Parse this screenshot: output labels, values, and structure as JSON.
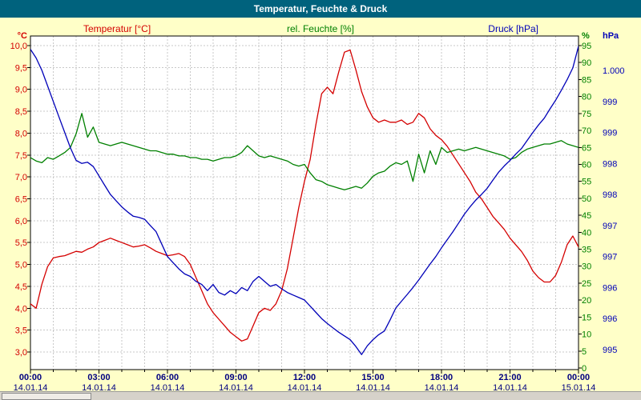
{
  "window": {
    "title": "Temperatur, Feuchte & Druck"
  },
  "colors": {
    "background": "#ffffc8",
    "plot_background": "#ffffff",
    "grid": "#c8c8c8",
    "plot_border": "#000000",
    "title_bar_bg": "#00627d",
    "title_bar_fg": "#ffffff",
    "time_label": "#000080",
    "temperature": "#d40000",
    "humidity": "#008000",
    "pressure": "#0000b8"
  },
  "chart_data": {
    "type": "line",
    "title": "Temperatur, Feuchte & Druck",
    "grid": {
      "style": "dashed",
      "vertical_every_hours": 1,
      "horizontal_every_deg_c": 0.5
    },
    "x_axis": {
      "unit": "time",
      "range": [
        0,
        24
      ],
      "step_hours": 0.25,
      "tick_hours": [
        0,
        3,
        6,
        9,
        12,
        15,
        18,
        21,
        24
      ],
      "tick_labels": [
        "00:00",
        "03:00",
        "06:00",
        "09:00",
        "12:00",
        "15:00",
        "18:00",
        "21:00",
        "00:00"
      ],
      "date_labels": [
        "14.01.14",
        "14.01.14",
        "14.01.14",
        "14.01.14",
        "14.01.14",
        "14.01.14",
        "14.01.14",
        "14.01.14",
        "15.01.14"
      ]
    },
    "y_axes": {
      "temperature": {
        "label": "Temperatur [°C]",
        "unit": "°C",
        "min": 3.0,
        "max": 10.0,
        "tick_step": 0.5,
        "color": "#d40000",
        "tick_labels": [
          "10,0",
          "9,5",
          "9,0",
          "8,5",
          "8,0",
          "7,5",
          "7,0",
          "6,5",
          "6,0",
          "5,5",
          "5,0",
          "4,5",
          "4,0",
          "3,5",
          "3,0"
        ]
      },
      "humidity": {
        "label": "rel. Feuchte [%]",
        "unit": "%",
        "min": 0,
        "max": 95,
        "tick_step": 5,
        "color": "#008000",
        "tick_labels": [
          "95",
          "90",
          "85",
          "80",
          "75",
          "70",
          "65",
          "60",
          "55",
          "50",
          "45",
          "40",
          "35",
          "30",
          "25",
          "20",
          "15",
          "10",
          "5",
          "0"
        ]
      },
      "pressure": {
        "label": "Druck [hPa]",
        "unit": "hPa",
        "color": "#0000b8",
        "tick_values": [
          1000.0,
          999.5,
          999.0,
          998.5,
          998.0,
          997.5,
          997.0,
          996.5,
          996.0,
          995.5
        ],
        "tick_labels": [
          "1.000",
          "999",
          "999",
          "998",
          "998",
          "997",
          "997",
          "996",
          "996",
          "995"
        ]
      }
    },
    "series": [
      {
        "name": "Temperatur [°C]",
        "axis": "temperature",
        "color": "#d40000",
        "values": [
          4.1,
          4.0,
          4.55,
          4.95,
          5.15,
          5.18,
          5.2,
          5.25,
          5.3,
          5.28,
          5.35,
          5.4,
          5.5,
          5.55,
          5.6,
          5.55,
          5.5,
          5.45,
          5.4,
          5.42,
          5.45,
          5.38,
          5.3,
          5.25,
          5.2,
          5.22,
          5.25,
          5.18,
          5.0,
          4.7,
          4.4,
          4.1,
          3.9,
          3.75,
          3.6,
          3.45,
          3.35,
          3.25,
          3.3,
          3.6,
          3.9,
          4.0,
          3.95,
          4.1,
          4.4,
          4.9,
          5.6,
          6.3,
          6.9,
          7.4,
          8.2,
          8.9,
          9.05,
          8.9,
          9.4,
          9.85,
          9.9,
          9.45,
          8.95,
          8.6,
          8.35,
          8.25,
          8.3,
          8.25,
          8.25,
          8.3,
          8.2,
          8.25,
          8.45,
          8.35,
          8.1,
          7.95,
          7.85,
          7.7,
          7.5,
          7.3,
          7.1,
          6.9,
          6.65,
          6.5,
          6.3,
          6.1,
          5.95,
          5.8,
          5.6,
          5.45,
          5.3,
          5.1,
          4.85,
          4.7,
          4.6,
          4.6,
          4.75,
          5.05,
          5.45,
          5.65,
          5.4
        ]
      },
      {
        "name": "rel. Feuchte [%]",
        "axis": "humidity",
        "color": "#008000",
        "values": [
          62,
          61,
          60.5,
          62,
          61.5,
          62.5,
          63.5,
          65,
          69,
          75,
          68,
          71,
          66.5,
          66,
          65.5,
          66,
          66.5,
          66,
          65.5,
          65,
          64.5,
          64,
          64,
          63.5,
          63,
          63,
          62.5,
          62.5,
          62,
          62,
          61.5,
          61.5,
          61,
          61.5,
          62,
          62,
          62.5,
          63.5,
          65.5,
          64,
          62.5,
          62,
          62.5,
          62,
          61.5,
          61,
          60,
          59.5,
          60,
          57.5,
          55.5,
          55,
          54,
          53.5,
          53,
          52.5,
          53,
          53.5,
          53,
          54.5,
          56.5,
          57.5,
          58,
          59.5,
          60.5,
          60,
          61,
          55,
          63,
          57.5,
          64,
          60,
          65,
          63.5,
          64,
          64.5,
          64,
          64.5,
          65,
          64.5,
          64,
          63.5,
          63,
          62.5,
          61.5,
          62,
          63.5,
          64.5,
          65,
          65.5,
          66,
          66,
          66.5,
          67,
          66,
          65.5,
          65
        ]
      },
      {
        "name": "Druck [hPa]",
        "axis": "pressure",
        "color": "#0000b8",
        "values": [
          1000.34,
          1000.2,
          1000.0,
          999.75,
          999.5,
          999.25,
          999.0,
          998.75,
          998.55,
          998.5,
          998.52,
          998.45,
          998.3,
          998.15,
          998.0,
          997.9,
          997.8,
          997.72,
          997.65,
          997.63,
          997.6,
          997.5,
          997.4,
          997.2,
          997.0,
          996.9,
          996.8,
          996.72,
          996.68,
          996.6,
          996.55,
          996.45,
          996.55,
          996.42,
          996.38,
          996.45,
          996.4,
          996.5,
          996.45,
          996.6,
          996.68,
          996.6,
          996.52,
          996.55,
          996.48,
          996.42,
          996.38,
          996.34,
          996.3,
          996.2,
          996.1,
          996.0,
          995.92,
          995.85,
          995.78,
          995.72,
          995.66,
          995.55,
          995.42,
          995.56,
          995.66,
          995.74,
          995.8,
          995.98,
          996.17,
          996.28,
          996.39,
          996.5,
          996.62,
          996.75,
          996.88,
          997.0,
          997.14,
          997.27,
          997.4,
          997.54,
          997.68,
          997.8,
          997.91,
          998.0,
          998.1,
          998.23,
          998.36,
          998.46,
          998.55,
          998.65,
          998.74,
          998.87,
          999.0,
          999.12,
          999.23,
          999.38,
          999.52,
          999.68,
          999.85,
          1000.04,
          1000.39
        ]
      }
    ]
  }
}
